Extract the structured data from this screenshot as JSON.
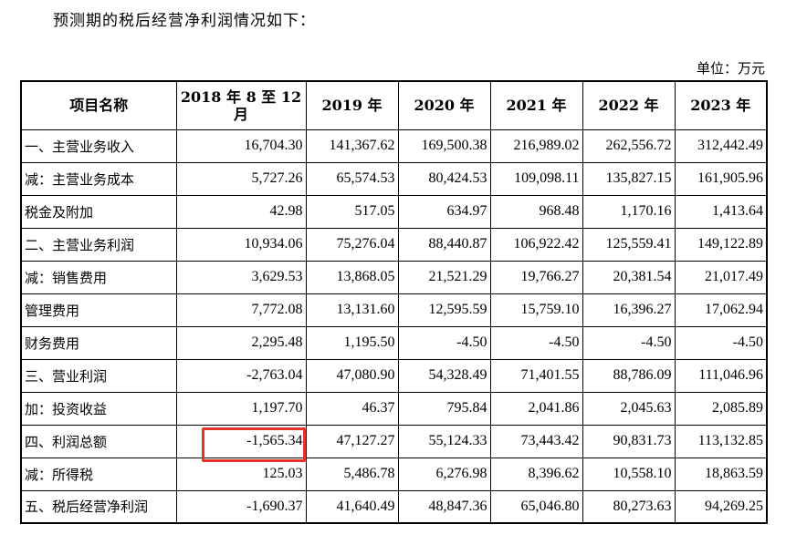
{
  "intro_text": "预测期的税后经营净利润情况如下：",
  "unit_label": "单位：万元",
  "table": {
    "headers": [
      "项目名称",
      "2018 年 8 至 12 月",
      "2019 年",
      "2020 年",
      "2021 年",
      "2022 年",
      "2023 年"
    ],
    "rows": [
      {
        "label": "一、主营业务收入",
        "values": [
          "16,704.30",
          "141,367.62",
          "169,500.38",
          "216,989.02",
          "262,556.72",
          "312,442.49"
        ]
      },
      {
        "label": "减：主营业务成本",
        "values": [
          "5,727.26",
          "65,574.53",
          "80,424.53",
          "109,098.11",
          "135,827.15",
          "161,905.96"
        ]
      },
      {
        "label": "税金及附加",
        "values": [
          "42.98",
          "517.05",
          "634.97",
          "968.48",
          "1,170.16",
          "1,413.64"
        ]
      },
      {
        "label": "二、主营业务利润",
        "values": [
          "10,934.06",
          "75,276.04",
          "88,440.87",
          "106,922.42",
          "125,559.41",
          "149,122.89"
        ]
      },
      {
        "label": "减：销售费用",
        "values": [
          "3,629.53",
          "13,868.05",
          "21,521.29",
          "19,766.27",
          "20,381.54",
          "21,017.49"
        ]
      },
      {
        "label": "管理费用",
        "values": [
          "7,772.08",
          "13,131.60",
          "12,595.59",
          "15,759.10",
          "16,396.27",
          "17,062.94"
        ]
      },
      {
        "label": "财务费用",
        "values": [
          "2,295.48",
          "1,195.50",
          "-4.50",
          "-4.50",
          "-4.50",
          "-4.50"
        ]
      },
      {
        "label": "三、营业利润",
        "values": [
          "-2,763.04",
          "47,080.90",
          "54,328.49",
          "71,401.55",
          "88,786.09",
          "111,046.96"
        ]
      },
      {
        "label": "加：投资收益",
        "values": [
          "1,197.70",
          "46.37",
          "795.84",
          "2,041.86",
          "2,045.63",
          "2,085.89"
        ]
      },
      {
        "label": "四、利润总额",
        "values": [
          "-1,565.34",
          "47,127.27",
          "55,124.33",
          "73,443.42",
          "90,831.73",
          "113,132.85"
        ]
      },
      {
        "label": "减：所得税",
        "values": [
          "125.03",
          "5,486.78",
          "6,276.98",
          "8,396.62",
          "10,558.10",
          "18,863.59"
        ]
      },
      {
        "label": "五、税后经营净利润",
        "values": [
          "-1,690.37",
          "41,640.49",
          "48,847.36",
          "65,046.80",
          "80,273.63",
          "94,269.25"
        ]
      }
    ]
  },
  "highlight_color": "#e8332a"
}
